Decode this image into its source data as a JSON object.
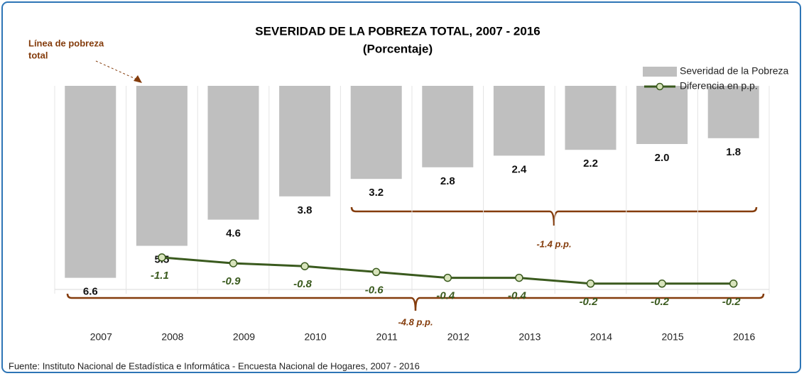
{
  "chart_data": {
    "type": "bar_line",
    "title": "SEVERIDAD DE LA POBREZA TOTAL, 2007 - 2016",
    "subtitle": "(Porcentaje)",
    "categories": [
      "2007",
      "2008",
      "2009",
      "2010",
      "2011",
      "2012",
      "2013",
      "2014",
      "2015",
      "2016"
    ],
    "series": [
      {
        "name": "Severidad de la Pobreza",
        "type": "bar",
        "color": "#bfbfbf",
        "values": [
          6.6,
          5.5,
          4.6,
          3.8,
          3.2,
          2.8,
          2.4,
          2.2,
          2.0,
          1.8
        ],
        "value_labels": [
          "6.6",
          "5.5",
          "4.6",
          "3.8",
          "3.2",
          "2.8",
          "2.4",
          "2.2",
          "2.0",
          "1.8"
        ]
      },
      {
        "name": "Diferencia en p.p.",
        "type": "line",
        "axis": "y2",
        "color": "#3a5a1e",
        "marker_fill": "#d8e4bc",
        "values": [
          null,
          -1.1,
          -0.9,
          -0.8,
          -0.6,
          -0.4,
          -0.4,
          -0.2,
          -0.2,
          -0.2
        ]
      }
    ],
    "ylim": [
      0,
      7
    ],
    "y_inverted": true,
    "y2lim": [
      0,
      -7
    ],
    "annotations": {
      "poverty_line": [
        "Línea de pobreza",
        "total"
      ],
      "bracket_short": "-1.4 p.p.",
      "bracket_long": "-4.8 p.p."
    },
    "legend": "top-right",
    "source": "Fuente: Instituto Nacional de Estadística e Informática - Encuesta Nacional de Hogares, 2007 - 2016"
  }
}
